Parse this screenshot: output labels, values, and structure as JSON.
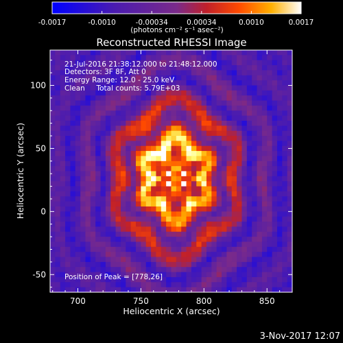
{
  "colorbar": {
    "tick_labels": [
      "-0.0017",
      "-0.0010",
      "-0.00034",
      "0.00034",
      "0.0010",
      "0.0017"
    ],
    "unit_label": "(photons cm⁻² s⁻¹ asec⁻²)"
  },
  "title": "Reconstructed RHESSI Image",
  "info": {
    "time_range": "21-Jul-2016 21:38:12.000 to 21:48:12.000",
    "detectors": "Detectors: 3F 8F, Att 0",
    "energy": "Energy Range: 12.0 - 25.0 keV",
    "method": "Clean     Total counts: 5.79E+03",
    "peak": "Position of Peak = [778,26]"
  },
  "axes": {
    "xlabel": "Heliocentric X (arcsec)",
    "ylabel": "Heliocentric Y (arcsec)",
    "x_ticks": [
      "700",
      "750",
      "800",
      "850"
    ],
    "y_ticks": [
      "100",
      "50",
      "0",
      "-50"
    ]
  },
  "footer": {
    "date": "3-Nov-2017 12:07"
  },
  "colors": {
    "background": "#000000",
    "colormap": [
      "#0000ff",
      "#4a1bb0",
      "#7a2a8a",
      "#c0202a",
      "#ff4a00",
      "#ffb000",
      "#ffff80",
      "#ffffff"
    ]
  },
  "image": {
    "x_range": [
      678,
      870
    ],
    "y_range": [
      -64,
      128
    ],
    "peak": [
      778,
      26
    ]
  }
}
